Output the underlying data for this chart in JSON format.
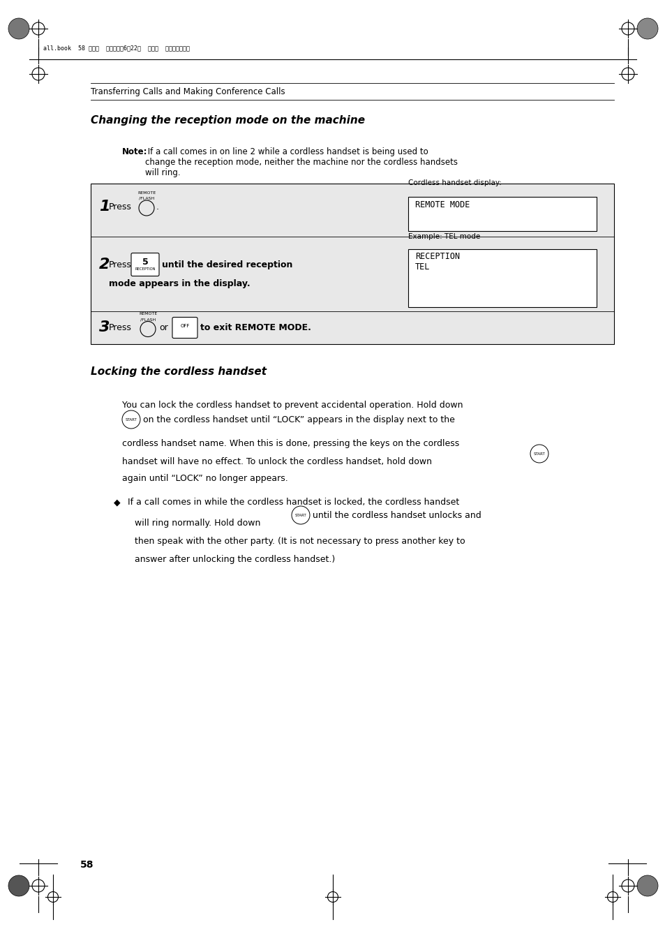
{
  "bg_color": "#ffffff",
  "page_width": 9.54,
  "page_height": 13.51,
  "header_text": "all.book  58 ページ  ２００４年6月22日  火曜日  午後１２時１分",
  "section_header": "Transferring Calls and Making Conference Calls",
  "title1": "Changing the reception mode on the machine",
  "note_bold": "Note:",
  "note_text": " If a call comes in on line 2 while a cordless handset is being used to\nchange the reception mode, neither the machine nor the cordless handsets\nwill ring.",
  "step1_num": "1",
  "step1_press": "Press",
  "step1_display_label": "Cordless handset display:",
  "step1_display_text": "REMOTE MODE",
  "step2_num": "2",
  "step2_press": "Press",
  "step2_text_bold": "until the desired reception",
  "step2_text_bold2": "mode appears in the display.",
  "step2_example_label": "Example: TEL mode",
  "step2_display_text": "RECEPTION\nTEL",
  "step3_num": "3",
  "step3_press": "Press",
  "step3_or": "or",
  "step3_text_bold": "to exit REMOTE MODE.",
  "title2": "Locking the cordless handset",
  "lock_para1": "You can lock the cordless handset to prevent accidental operation. Hold down",
  "lock_para2a": "on the cordless handset until “LOCK” appears in the display next to the",
  "lock_para2b": "cordless handset name. When this is done, pressing the keys on the cordless",
  "lock_para2c": "handset will have no effect. To unlock the cordless handset, hold down",
  "lock_para3": "again until “LOCK” no longer appears.",
  "bullet_line1": "If a call comes in while the cordless handset is locked, the cordless handset",
  "bullet_line2a": "will ring normally. Hold down",
  "bullet_line2b": "until the cordless handset unlocks and",
  "bullet_line3": "then speak with the other party. (It is not necessary to press another key to",
  "bullet_line4": "answer after unlocking the cordless handset.)",
  "page_num": "58",
  "table_bg": "#e8e8e8",
  "box_bg": "#ffffff"
}
